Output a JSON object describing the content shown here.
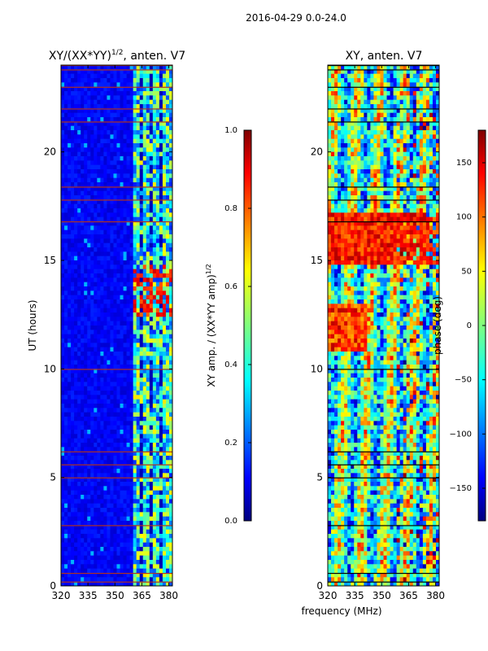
{
  "figure": {
    "suptitle": "2016-04-29 0.0-24.0",
    "shared_xlabel": "frequency (MHz)"
  },
  "chart_data": [
    {
      "type": "heatmap",
      "title_main": "XY/(XX*YY)",
      "title_sup": "1/2",
      "title_tail": ", anten. V7",
      "ylabel": "UT (hours)",
      "x_ticks": [
        "320",
        "335",
        "350",
        "365",
        "380"
      ],
      "x_tick_values": [
        320,
        335,
        350,
        365,
        380
      ],
      "xlim": [
        320,
        382
      ],
      "y_ticks": [
        "0",
        "5",
        "10",
        "15",
        "20"
      ],
      "y_tick_values": [
        0,
        5,
        10,
        15,
        20
      ],
      "ylim": [
        0,
        24
      ],
      "colormap": "jet",
      "colorbar": {
        "label_main": "XY amp. / (XX*YY amp)",
        "label_sup": "1/2",
        "ticks": [
          "0.0",
          "0.2",
          "0.4",
          "0.6",
          "0.8",
          "1.0"
        ],
        "tick_values": [
          0.0,
          0.2,
          0.4,
          0.6,
          0.8,
          1.0
        ],
        "range": [
          0.0,
          1.0
        ]
      }
    },
    {
      "type": "heatmap",
      "title": "XY, anten. V7",
      "x_ticks": [
        "320",
        "335",
        "350",
        "365",
        "380"
      ],
      "x_tick_values": [
        320,
        335,
        350,
        365,
        380
      ],
      "xlim": [
        320,
        382
      ],
      "y_ticks": [
        "0",
        "5",
        "10",
        "15",
        "20"
      ],
      "y_tick_values": [
        0,
        5,
        10,
        15,
        20
      ],
      "ylim": [
        0,
        24
      ],
      "colormap": "jet",
      "colorbar": {
        "label": "phase (deg)",
        "ticks": [
          "−150",
          "−100",
          "−50",
          "0",
          "50",
          "100",
          "150"
        ],
        "tick_values": [
          -150,
          -100,
          -50,
          0,
          50,
          100,
          150
        ],
        "range": [
          -180,
          180
        ]
      }
    }
  ],
  "colors": {
    "jet": [
      "#00007f",
      "#0000ff",
      "#007fff",
      "#00ffff",
      "#7fff7f",
      "#ffff00",
      "#ff7f00",
      "#ff0000",
      "#7f0000"
    ]
  }
}
